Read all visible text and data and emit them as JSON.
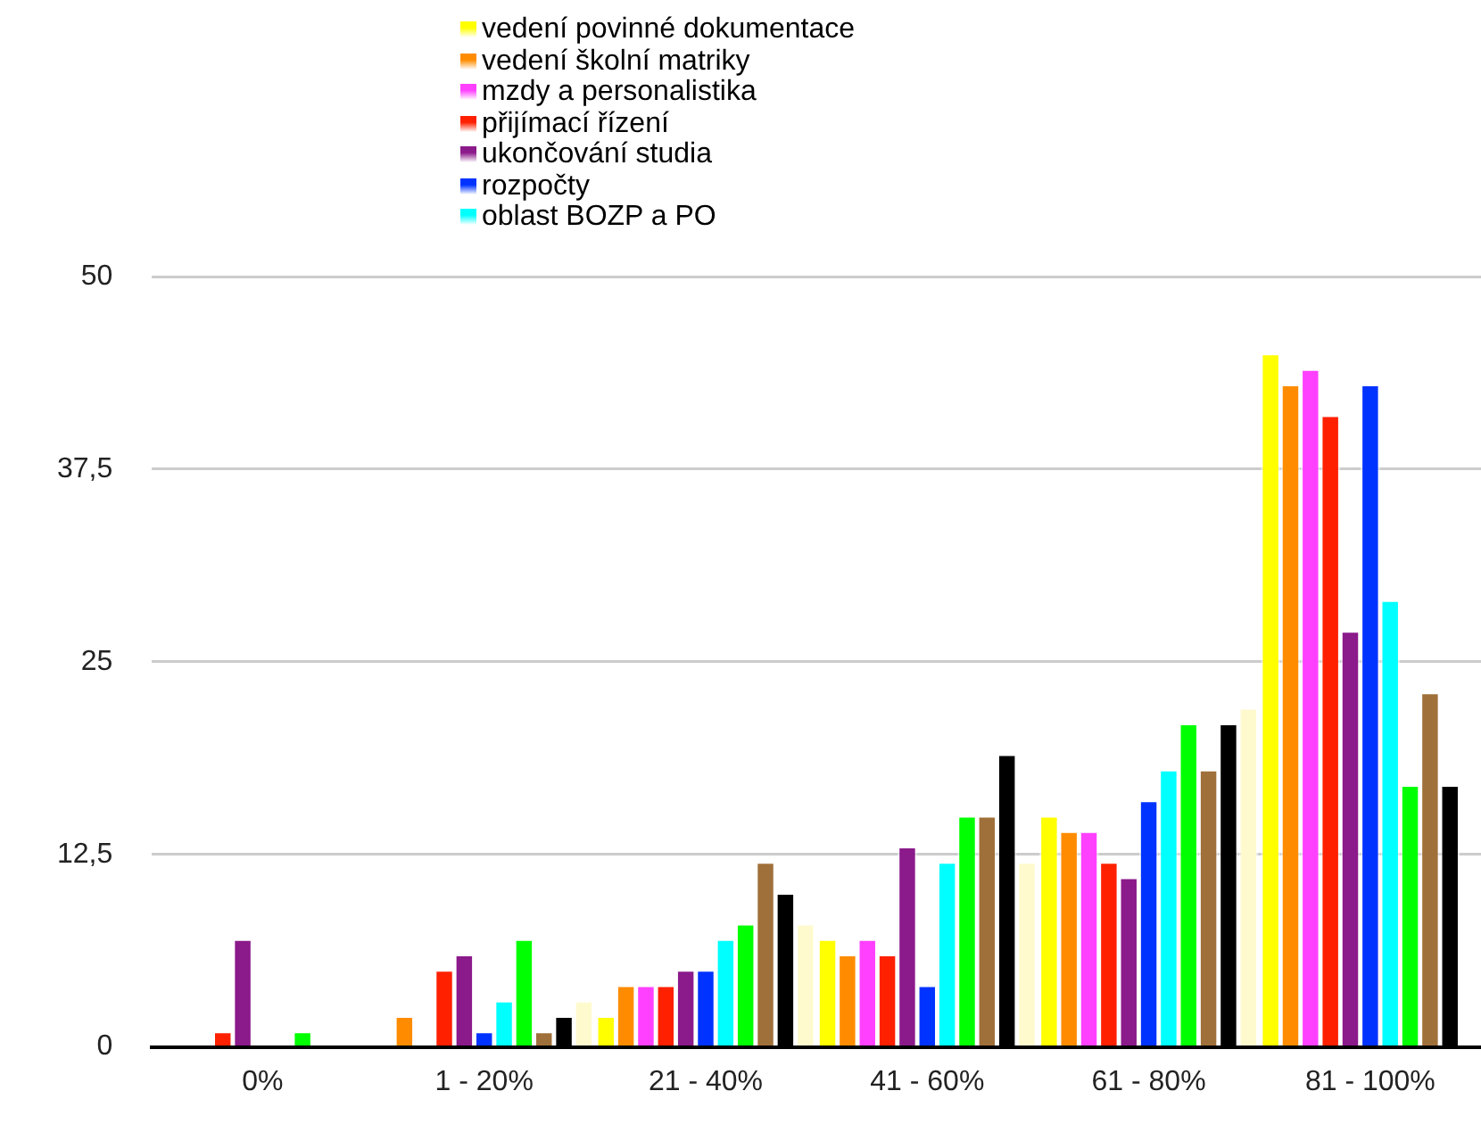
{
  "chart_data": {
    "type": "bar",
    "categories": [
      "0%",
      "1 - 20%",
      "21 - 40%",
      "41 - 60%",
      "61 - 80%",
      "81 - 100%"
    ],
    "series": [
      {
        "name": "vedení povinné dokumentace",
        "color": "#ffff00",
        "values": [
          0,
          0,
          2,
          7,
          15,
          45
        ]
      },
      {
        "name": "vedení školní matriky",
        "color": "#ff8c00",
        "values": [
          0,
          2,
          4,
          6,
          14,
          43
        ]
      },
      {
        "name": "mzdy a personalistika",
        "color": "#ff40ff",
        "values": [
          0,
          0,
          4,
          7,
          14,
          44
        ]
      },
      {
        "name": "přijímací řízení",
        "color": "#ff2000",
        "values": [
          1,
          5,
          4,
          6,
          12,
          41
        ]
      },
      {
        "name": "ukončování studia",
        "color": "#8b1a8b",
        "values": [
          7,
          6,
          5,
          13,
          11,
          27
        ]
      },
      {
        "name": "rozpočty",
        "color": "#0033ff",
        "values": [
          0,
          1,
          5,
          4,
          16,
          43
        ]
      },
      {
        "name": "oblast BOZP a PO",
        "color": "#00ffff",
        "values": [
          0,
          3,
          7,
          12,
          18,
          29
        ]
      },
      {
        "color": "#00ff00",
        "values": [
          1,
          7,
          8,
          15,
          21,
          17
        ]
      },
      {
        "color": "#a0703a",
        "values": [
          0,
          1,
          12,
          15,
          18,
          23
        ]
      },
      {
        "color": "#000000",
        "values": [
          0,
          2,
          10,
          19,
          21,
          17
        ]
      },
      {
        "color": "#fffacd",
        "values": [
          0,
          3,
          8,
          12,
          22,
          null
        ]
      }
    ],
    "ylim": [
      0,
      50
    ],
    "yticks": [
      0,
      {
        "value": 12.5,
        "label": "12,5"
      },
      25,
      {
        "value": 37.5,
        "label": "37,5"
      },
      50
    ],
    "grid": "y",
    "legend": "top"
  }
}
